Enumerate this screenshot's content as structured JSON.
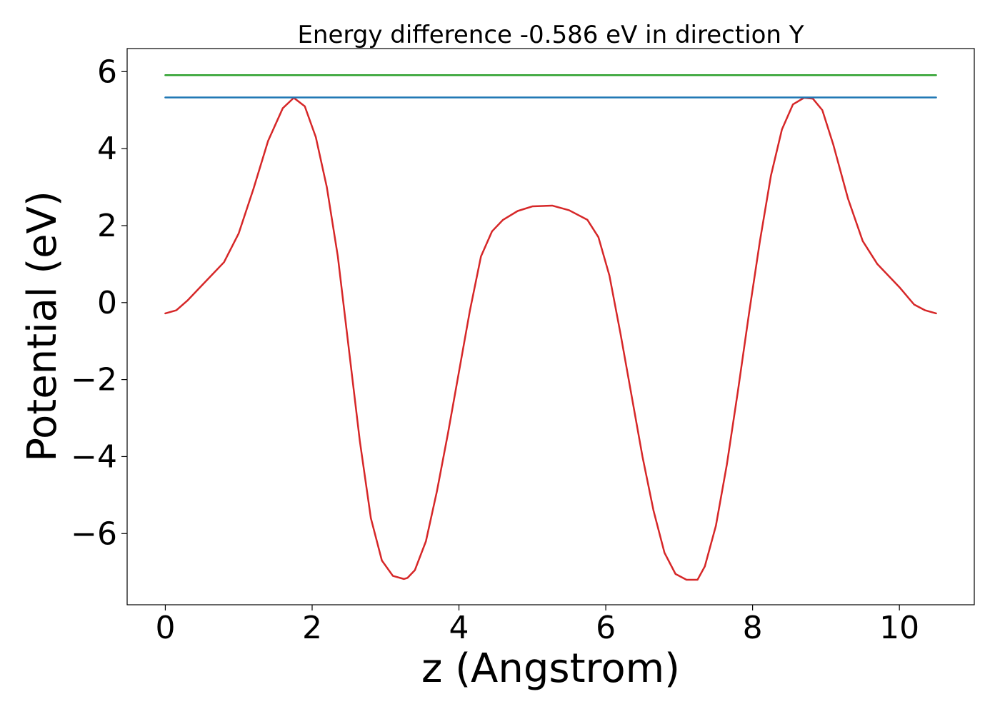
{
  "chart_data": {
    "type": "line",
    "title": "Energy difference -0.586 eV in direction Y",
    "xlabel": "z (Angstrom)",
    "ylabel": "Potential (eV)",
    "xlim": [
      -0.52,
      11.02
    ],
    "ylim": [
      -7.85,
      6.6
    ],
    "x_ticks": [
      0,
      2,
      4,
      6,
      8,
      10
    ],
    "x_tick_labels": [
      "0",
      "2",
      "4",
      "6",
      "8",
      "10"
    ],
    "y_ticks": [
      -6,
      -4,
      -2,
      0,
      2,
      4,
      6
    ],
    "y_tick_labels": [
      "−6",
      "−4",
      "−2",
      "0",
      "2",
      "4",
      "6"
    ],
    "grid": false,
    "legend": "none",
    "series": [
      {
        "color": "#d62728",
        "x": [
          0.0,
          0.15,
          0.3,
          0.5,
          0.8,
          1.0,
          1.2,
          1.4,
          1.6,
          1.75,
          1.9,
          2.05,
          2.2,
          2.35,
          2.5,
          2.65,
          2.8,
          2.95,
          3.1,
          3.25,
          3.3,
          3.4,
          3.55,
          3.7,
          3.85,
          4.0,
          4.15,
          4.3,
          4.45,
          4.6,
          4.8,
          5.0,
          5.27,
          5.5,
          5.75,
          5.9,
          6.05,
          6.2,
          6.35,
          6.5,
          6.65,
          6.8,
          6.95,
          7.1,
          7.25,
          7.35,
          7.5,
          7.65,
          7.8,
          7.95,
          8.1,
          8.25,
          8.4,
          8.55,
          8.7,
          8.82,
          8.95,
          9.1,
          9.3,
          9.5,
          9.7,
          10.0,
          10.2,
          10.35,
          10.5
        ],
        "y": [
          -0.28,
          -0.2,
          0.05,
          0.45,
          1.05,
          1.8,
          2.95,
          4.2,
          5.05,
          5.32,
          5.1,
          4.3,
          3.0,
          1.2,
          -1.2,
          -3.6,
          -5.6,
          -6.7,
          -7.1,
          -7.18,
          -7.15,
          -6.95,
          -6.2,
          -4.9,
          -3.4,
          -1.8,
          -0.2,
          1.2,
          1.85,
          2.15,
          2.38,
          2.5,
          2.52,
          2.4,
          2.15,
          1.7,
          0.7,
          -0.8,
          -2.4,
          -4.0,
          -5.4,
          -6.5,
          -7.05,
          -7.2,
          -7.2,
          -6.85,
          -5.8,
          -4.2,
          -2.3,
          -0.3,
          1.6,
          3.3,
          4.5,
          5.15,
          5.32,
          5.3,
          5.0,
          4.1,
          2.7,
          1.6,
          1.0,
          0.4,
          -0.05,
          -0.2,
          -0.28
        ]
      },
      {
        "color": "#1f77b4",
        "x": [
          0.0,
          10.5
        ],
        "y": [
          5.33,
          5.33
        ]
      },
      {
        "color": "#2ca02c",
        "x": [
          0.0,
          10.5
        ],
        "y": [
          5.91,
          5.91
        ]
      }
    ]
  }
}
